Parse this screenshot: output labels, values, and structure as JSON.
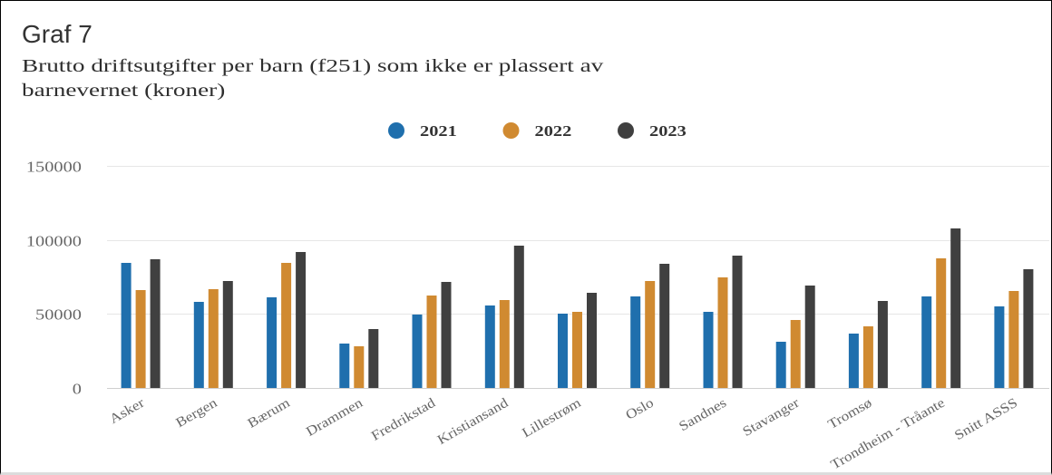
{
  "heading": "Graf 7",
  "chart_data": {
    "type": "bar",
    "title": "Brutto driftsutgifter per barn (f251) som ikke er plassert av barnevernet (kroner)",
    "categories": [
      "Asker",
      "Bergen",
      "Bærum",
      "Drammen",
      "Fredrikstad",
      "Kristiansand",
      "Lillestrøm",
      "Oslo",
      "Sandnes",
      "Stavanger",
      "Tromsø",
      "Trondheim - Tråante",
      "Snitt ASSS"
    ],
    "series": [
      {
        "name": "2021",
        "color": "#1f6fad",
        "values": [
          84500,
          58000,
          61000,
          30000,
          49500,
          56000,
          50000,
          62000,
          51500,
          31000,
          36500,
          62000,
          55000
        ]
      },
      {
        "name": "2022",
        "color": "#d08a31",
        "values": [
          66000,
          67000,
          84500,
          28000,
          62500,
          59500,
          51500,
          72000,
          75000,
          46000,
          41500,
          87500,
          65500
        ]
      },
      {
        "name": "2023",
        "color": "#404040",
        "values": [
          87000,
          72000,
          92000,
          40000,
          71500,
          96000,
          64000,
          84000,
          89500,
          69000,
          59000,
          108000,
          80000
        ]
      }
    ],
    "ylim": [
      0,
      150000
    ],
    "yticks": [
      0,
      50000,
      100000,
      150000
    ],
    "grid": true,
    "legend": "top-center"
  }
}
